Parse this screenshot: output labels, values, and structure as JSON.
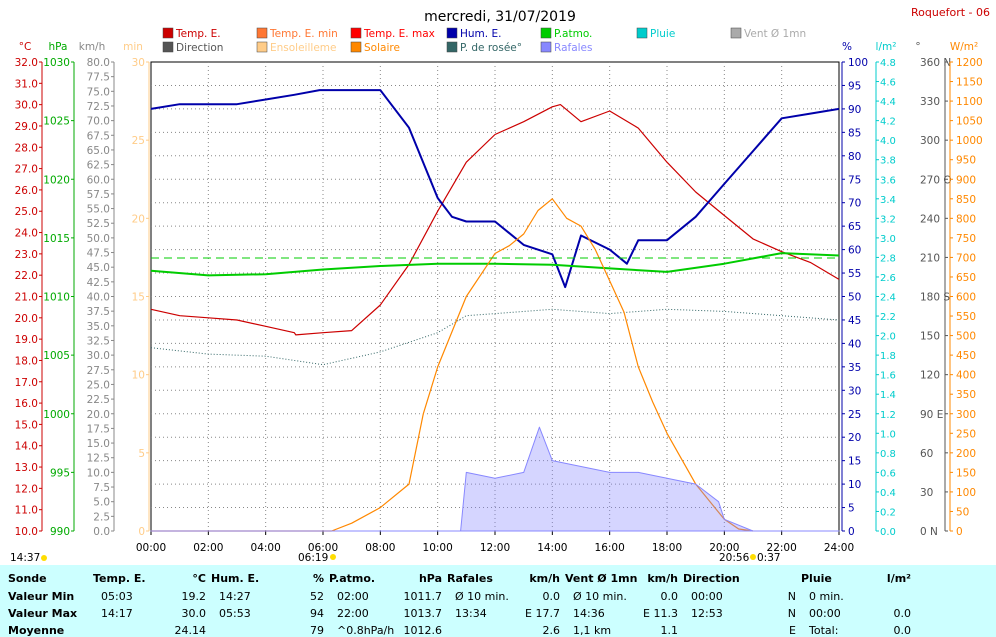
{
  "title": "mercredi, 31/07/2019",
  "station": "Roquefort - 06",
  "legend": [
    {
      "label": "Temp. E.",
      "color": "#cc0000"
    },
    {
      "label": "Direction",
      "color": "#555555"
    },
    {
      "label": "Temp. E. min",
      "color": "#ff7733"
    },
    {
      "label": "Ensoleilleme",
      "color": "#ffcc88"
    },
    {
      "label": "Temp. E. max",
      "color": "#ff0000"
    },
    {
      "label": "Solaire",
      "color": "#ff8800"
    },
    {
      "label": "Hum. E.",
      "color": "#0000aa"
    },
    {
      "label": "P. de rosée°",
      "color": "#336666"
    },
    {
      "label": "P.atmo.",
      "color": "#00cc00"
    },
    {
      "label": "Rafales",
      "color": "#8888ff"
    },
    {
      "label": "Pluie",
      "color": "#00cccc"
    },
    {
      "label": "Vent Ø 1mn",
      "color": "#aaaaaa"
    }
  ],
  "axes": {
    "temp": {
      "unit": "°C",
      "color": "#cc0000",
      "ticks": [
        "32.0",
        "31.0",
        "30.0",
        "29.0",
        "28.0",
        "27.0",
        "26.0",
        "25.0",
        "24.0",
        "23.0",
        "22.0",
        "21.0",
        "20.0",
        "19.0",
        "18.0",
        "17.0",
        "16.0",
        "15.0",
        "14.0",
        "13.0",
        "12.0",
        "11.0",
        "10.0"
      ]
    },
    "pressure": {
      "unit": "hPa",
      "color": "#00aa00",
      "ticks": [
        "1030",
        "1025",
        "1020",
        "1015",
        "1010",
        "1005",
        "1000",
        "995",
        "990"
      ]
    },
    "wind": {
      "unit": "km/h",
      "color": "#888888",
      "ticks": [
        "80.0",
        "77.5",
        "75.0",
        "72.5",
        "70.0",
        "67.5",
        "65.0",
        "62.5",
        "60.0",
        "57.5",
        "55.0",
        "52.5",
        "50.0",
        "47.5",
        "45.0",
        "42.5",
        "40.0",
        "37.5",
        "35.0",
        "32.5",
        "30.0",
        "27.5",
        "25.0",
        "22.5",
        "20.0",
        "17.5",
        "15.0",
        "12.5",
        "10.0",
        "7.5",
        "5.0",
        "2.5",
        "0.0"
      ]
    },
    "sunshine": {
      "unit": "min",
      "color": "#ffcc88",
      "ticks": [
        "30",
        "25",
        "20",
        "15",
        "10",
        "5",
        "0"
      ]
    },
    "humidity": {
      "unit": "%",
      "color": "#0000aa",
      "ticks": [
        "100",
        "95",
        "90",
        "85",
        "80",
        "75",
        "70",
        "65",
        "60",
        "55",
        "50",
        "45",
        "40",
        "35",
        "30",
        "25",
        "20",
        "15",
        "10",
        "5",
        "0"
      ]
    },
    "rain": {
      "unit": "l/m²",
      "color": "#00cccc",
      "ticks": [
        "4.8",
        "4.6",
        "4.4",
        "4.2",
        "4.0",
        "3.8",
        "3.6",
        "3.4",
        "3.2",
        "3.0",
        "2.8",
        "2.6",
        "2.4",
        "2.2",
        "2.0",
        "1.8",
        "1.6",
        "1.4",
        "1.2",
        "1.0",
        "0.8",
        "0.6",
        "0.4",
        "0.2",
        "0.0"
      ]
    },
    "direction": {
      "unit": "°",
      "color": "#555555",
      "ticks": [
        "360 N",
        "330",
        "300",
        "270 O",
        "240",
        "210",
        "180 S",
        "150",
        "120",
        "90 E",
        "60",
        "30",
        "0 N"
      ]
    },
    "solar": {
      "unit": "W/m²",
      "color": "#ff8800",
      "ticks": [
        "1200",
        "1150",
        "1100",
        "1050",
        "1000",
        "950",
        "900",
        "850",
        "800",
        "750",
        "700",
        "650",
        "600",
        "550",
        "500",
        "450",
        "400",
        "350",
        "300",
        "250",
        "200",
        "150",
        "100",
        "50",
        "0"
      ]
    },
    "time": {
      "ticks": [
        "00:00",
        "02:00",
        "04:00",
        "06:00",
        "08:00",
        "10:00",
        "12:00",
        "14:00",
        "16:00",
        "18:00",
        "20:00",
        "22:00",
        "24:00"
      ]
    }
  },
  "markers": {
    "left_time": "14:37",
    "sunrise": "06:19",
    "sunset": "20:56",
    "sunset_suffix": "0:37"
  },
  "chart_data": {
    "type": "line",
    "title": "mercredi, 31/07/2019",
    "x_unit": "hour of day",
    "xlim": [
      0,
      24
    ],
    "series": [
      {
        "name": "Temp. E.",
        "unit": "°C",
        "x": [
          0,
          1,
          2,
          3,
          4,
          5,
          5.05,
          6,
          7,
          8,
          9,
          10,
          11,
          12,
          13,
          14,
          14.28,
          15,
          16,
          17,
          18,
          19,
          20,
          21,
          22,
          23,
          24
        ],
        "y": [
          20.4,
          20.1,
          20.0,
          19.9,
          19.6,
          19.3,
          19.2,
          19.3,
          19.4,
          20.6,
          22.5,
          25.0,
          27.3,
          28.6,
          29.2,
          29.9,
          30.0,
          29.2,
          29.7,
          28.9,
          27.3,
          25.9,
          24.8,
          23.7,
          23.1,
          22.6,
          21.8
        ]
      },
      {
        "name": "Hum. E.",
        "unit": "%",
        "x": [
          0,
          1,
          2,
          3,
          4,
          5,
          5.88,
          6,
          7,
          8,
          9,
          10,
          10.5,
          11,
          12,
          13,
          14,
          14.45,
          15,
          16,
          16.6,
          17,
          18,
          19,
          20,
          21,
          22,
          23,
          24
        ],
        "y": [
          90,
          91,
          91,
          91,
          92,
          93,
          94,
          94,
          94,
          94,
          86,
          71,
          67,
          66,
          66,
          61,
          59,
          52,
          63,
          60,
          57,
          62,
          62,
          67,
          74,
          81,
          88,
          89,
          90
        ]
      },
      {
        "name": "P.atmo.",
        "unit": "hPa",
        "x": [
          0,
          2,
          4,
          6,
          8,
          10,
          12,
          14,
          16,
          18,
          20,
          22,
          24
        ],
        "y": [
          1012.2,
          1011.8,
          1011.9,
          1012.3,
          1012.6,
          1012.8,
          1012.8,
          1012.7,
          1012.4,
          1012.1,
          1012.8,
          1013.7,
          1013.5
        ]
      },
      {
        "name": "P. de rosée°",
        "unit": "°C",
        "x": [
          0,
          2,
          4,
          6,
          7,
          8,
          10,
          11,
          12,
          14,
          16,
          18,
          20,
          22,
          24
        ],
        "y": [
          18.6,
          18.3,
          18.2,
          17.8,
          18.1,
          18.4,
          19.3,
          20.1,
          20.2,
          20.4,
          20.2,
          20.4,
          20.3,
          20.1,
          19.9
        ]
      },
      {
        "name": "Solaire",
        "unit": "W/m²",
        "x": [
          0,
          6.3,
          7,
          8,
          9,
          9.5,
          10,
          11,
          12,
          12.5,
          13,
          13.5,
          14,
          14.5,
          15,
          15.5,
          16,
          16.5,
          17,
          17.5,
          18,
          19,
          20,
          20.5,
          21
        ],
        "y": [
          0,
          0,
          20,
          60,
          120,
          300,
          420,
          600,
          710,
          730,
          760,
          820,
          850,
          800,
          780,
          720,
          640,
          560,
          420,
          330,
          250,
          120,
          30,
          5,
          0
        ]
      },
      {
        "name": "Rafales",
        "unit": "km/h",
        "x": [
          0,
          10.8,
          11,
          12,
          13,
          13.55,
          14,
          15,
          16,
          17,
          18,
          19,
          19.8,
          20,
          21,
          22,
          24
        ],
        "y": [
          0,
          0,
          10,
          9,
          10,
          17.7,
          12,
          11,
          10,
          10,
          9,
          8,
          5,
          2,
          0,
          0,
          0
        ]
      }
    ]
  },
  "table": {
    "headers": [
      {
        "label": "Sonde",
        "unit": ""
      },
      {
        "label": "Temp. E.",
        "unit": "°C"
      },
      {
        "label": "Hum. E.",
        "unit": "%"
      },
      {
        "label": "P.atmo.",
        "unit": "hPa"
      },
      {
        "label": "Rafales",
        "unit": "km/h"
      },
      {
        "label": "Vent Ø 1mn",
        "unit": "km/h"
      },
      {
        "label": "Direction",
        "unit": ""
      },
      {
        "label": "Pluie",
        "unit": "l/m²"
      }
    ],
    "rows": [
      {
        "label": "Valeur Min",
        "temp_time": "05:03",
        "temp_val": "19.2",
        "hum_time": "14:27",
        "hum_val": "52",
        "pat_time": "02:00",
        "pat_val": "1011.7",
        "raf_time": "Ø 10 min.",
        "raf_val": "0.0",
        "vent_time": "Ø 10 min.",
        "vent_val": "0.0",
        "dir_time": "00:00",
        "dir_val": "N",
        "pluie_time": "0 min.",
        "pluie_val": ""
      },
      {
        "label": "Valeur Max",
        "temp_time": "14:17",
        "temp_val": "30.0",
        "hum_time": "05:53",
        "hum_val": "94",
        "pat_time": "22:00",
        "pat_val": "1013.7",
        "raf_time": "13:34",
        "raf_val": "E 17.7",
        "vent_time": "14:36",
        "vent_val": "E 11.3",
        "dir_time": "12:53",
        "dir_val": "N",
        "pluie_time": "00:00",
        "pluie_val": "0.0"
      },
      {
        "label": "Moyenne",
        "temp_time": "",
        "temp_val": "24.14",
        "hum_time": "",
        "hum_val": "79",
        "pat_time": "^0.8hPa/h",
        "pat_val": "1012.6",
        "raf_time": "",
        "raf_val": "2.6",
        "vent_time": "1,1 km",
        "vent_val": "1.1",
        "dir_time": "",
        "dir_val": "E",
        "pluie_time": "Total:",
        "pluie_val": "0.0"
      }
    ]
  }
}
